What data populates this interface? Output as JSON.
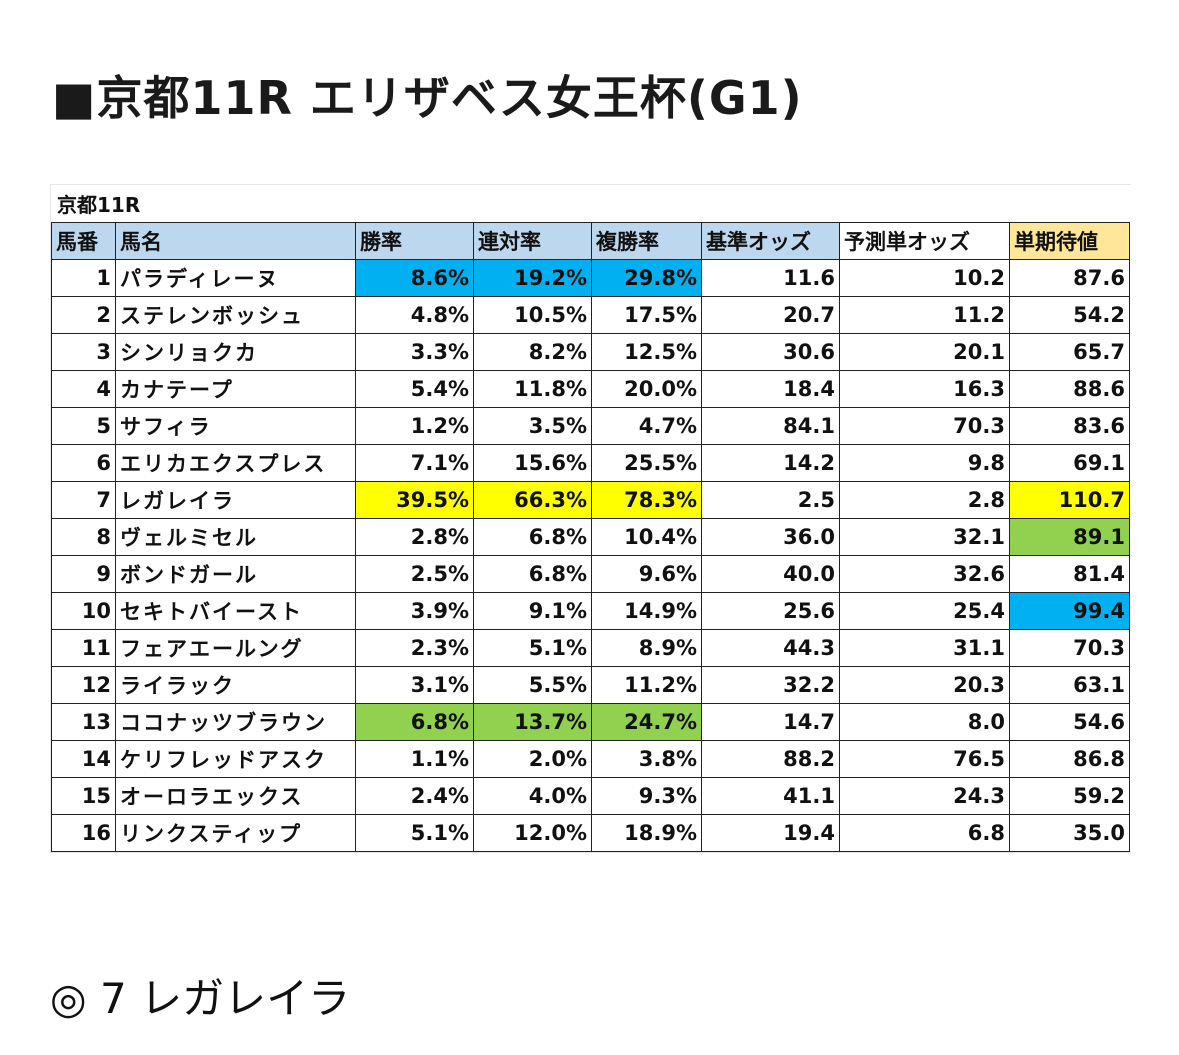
{
  "title": "■京都11R エリザベス女王杯(G1)",
  "table_caption": "京都11R",
  "columns": [
    "馬番",
    "馬名",
    "勝率",
    "連対率",
    "複勝率",
    "基準オッズ",
    "予測単オッズ",
    "単期待値"
  ],
  "header_colors": [
    "#bdd7ee",
    "#bdd7ee",
    "#bdd7ee",
    "#bdd7ee",
    "#bdd7ee",
    "#bdd7ee",
    "#ffffff",
    "#ffe699"
  ],
  "rows": [
    [
      "1",
      "パラディレーヌ",
      "8.6%",
      "19.2%",
      "29.8%",
      "11.6",
      "10.2",
      "87.6"
    ],
    [
      "2",
      "ステレンボッシュ",
      "4.8%",
      "10.5%",
      "17.5%",
      "20.7",
      "11.2",
      "54.2"
    ],
    [
      "3",
      "シンリョクカ",
      "3.3%",
      "8.2%",
      "12.5%",
      "30.6",
      "20.1",
      "65.7"
    ],
    [
      "4",
      "カナテープ",
      "5.4%",
      "11.8%",
      "20.0%",
      "18.4",
      "16.3",
      "88.6"
    ],
    [
      "5",
      "サフィラ",
      "1.2%",
      "3.5%",
      "4.7%",
      "84.1",
      "70.3",
      "83.6"
    ],
    [
      "6",
      "エリカエクスプレス",
      "7.1%",
      "15.6%",
      "25.5%",
      "14.2",
      "9.8",
      "69.1"
    ],
    [
      "7",
      "レガレイラ",
      "39.5%",
      "66.3%",
      "78.3%",
      "2.5",
      "2.8",
      "110.7"
    ],
    [
      "8",
      "ヴェルミセル",
      "2.8%",
      "6.8%",
      "10.4%",
      "36.0",
      "32.1",
      "89.1"
    ],
    [
      "9",
      "ボンドガール",
      "2.5%",
      "6.8%",
      "9.6%",
      "40.0",
      "32.6",
      "81.4"
    ],
    [
      "10",
      "セキトバイースト",
      "3.9%",
      "9.1%",
      "14.9%",
      "25.6",
      "25.4",
      "99.4"
    ],
    [
      "11",
      "フェアエールング",
      "2.3%",
      "5.1%",
      "8.9%",
      "44.3",
      "31.1",
      "70.3"
    ],
    [
      "12",
      "ライラック",
      "3.1%",
      "5.5%",
      "11.2%",
      "32.2",
      "20.3",
      "63.1"
    ],
    [
      "13",
      "ココナッツブラウン",
      "6.8%",
      "13.7%",
      "24.7%",
      "14.7",
      "8.0",
      "54.6"
    ],
    [
      "14",
      "ケリフレッドアスク",
      "1.1%",
      "2.0%",
      "3.8%",
      "88.2",
      "76.5",
      "86.8"
    ],
    [
      "15",
      "オーロラエックス",
      "2.4%",
      "4.0%",
      "9.3%",
      "41.1",
      "24.3",
      "59.2"
    ],
    [
      "16",
      "リンクスティップ",
      "5.1%",
      "12.0%",
      "18.9%",
      "19.4",
      "6.8",
      "35.0"
    ]
  ],
  "highlights": {
    "1": {
      "2": "#00b0f0",
      "3": "#00b0f0",
      "4": "#00b0f0"
    },
    "7": {
      "2": "#ffff00",
      "3": "#ffff00",
      "4": "#ffff00",
      "7": "#ffff00"
    },
    "8": {
      "7": "#92d050"
    },
    "10": {
      "7": "#00b0f0"
    },
    "13": {
      "2": "#92d050",
      "3": "#92d050",
      "4": "#92d050"
    }
  },
  "pick": "◎ 7 レガレイラ"
}
